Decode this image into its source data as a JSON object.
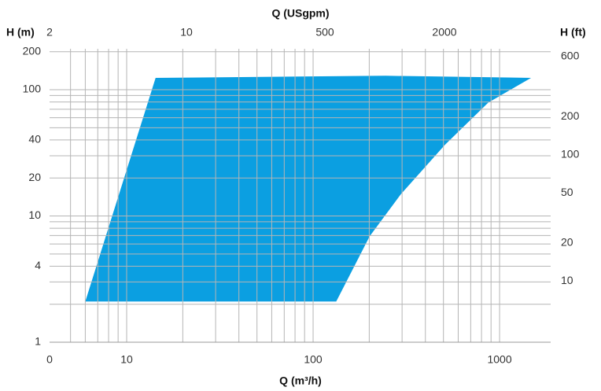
{
  "chart_data": {
    "type": "area",
    "x_label": "Q (m³/h)",
    "x2_label": "Q (USgpm)",
    "y_label": "H (m)",
    "y2_label": "H (ft)",
    "x_origin_label": "0",
    "x2_tick_labels": [
      "2",
      "10",
      "500",
      "2000"
    ],
    "x": [
      6.0,
      14.3,
      245,
      1100,
      1475,
      869,
      509,
      296,
      201,
      133
    ],
    "values": [
      2.1,
      124,
      129,
      125,
      124,
      79,
      36.6,
      14.9,
      6.9,
      2.1
    ],
    "color": "#0b9fe1",
    "log_x": true,
    "log_y": true,
    "xlim": [
      3.86,
      1879
    ],
    "ylim": [
      1,
      211
    ],
    "y2lim": [
      3.28,
      692
    ],
    "xticks": [
      10,
      100,
      1000
    ],
    "yticks": [
      1,
      4,
      10,
      20,
      40,
      100,
      200
    ],
    "y2ticks": [
      10,
      20,
      50,
      100,
      200,
      600
    ],
    "grid": true,
    "x_minor_grid": [
      5,
      6,
      7,
      8,
      9,
      20,
      30,
      40,
      50,
      60,
      70,
      80,
      90,
      200,
      300,
      400,
      500,
      600,
      700,
      800,
      900
    ],
    "y_minor_grid": [
      2,
      3,
      5,
      6,
      7,
      8,
      9,
      30,
      50,
      60,
      70,
      80,
      90
    ]
  }
}
